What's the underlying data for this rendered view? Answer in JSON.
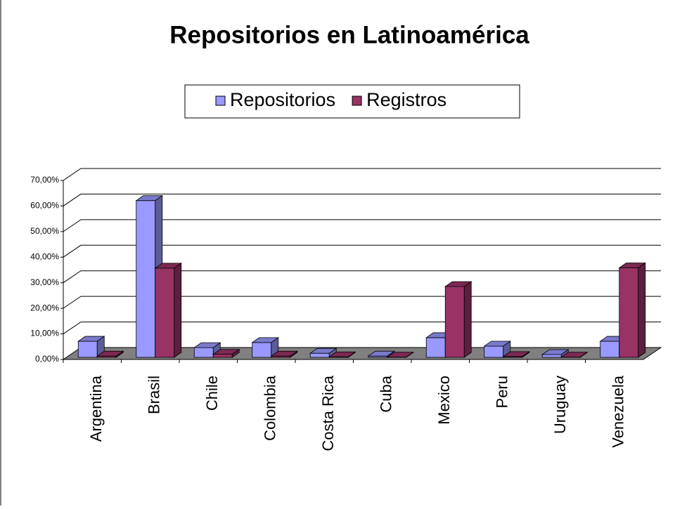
{
  "chart_data": {
    "type": "bar3d",
    "title": "Repositorios en Latinoamérica",
    "categories": [
      "Argentina",
      "Brasil",
      "Chile",
      "Colombia",
      "Costa Rica",
      "Cuba",
      "Mexico",
      "Peru",
      "Uruguay",
      "Venezuela"
    ],
    "series": [
      {
        "name": "Repositorios",
        "color": "#9999ff",
        "values": [
          6.3,
          61.3,
          3.8,
          5.8,
          1.6,
          0.5,
          7.7,
          4.4,
          1.1,
          6.3
        ]
      },
      {
        "name": "Registros",
        "color": "#993366",
        "values": [
          0.5,
          34.9,
          1.2,
          0.5,
          0.2,
          0.1,
          27.7,
          0.3,
          0.1,
          35
        ]
      }
    ],
    "ylim": [
      0,
      70
    ],
    "yticks": [
      {
        "value": 0,
        "label": "0,00%"
      },
      {
        "value": 10,
        "label": "10,00%"
      },
      {
        "value": 20,
        "label": "20,00%"
      },
      {
        "value": 30,
        "label": "30,00%"
      },
      {
        "value": 40,
        "label": "40,00%"
      },
      {
        "value": 50,
        "label": "50,00%"
      },
      {
        "value": 60,
        "label": "60,00%"
      },
      {
        "value": 70,
        "label": "70,00%"
      }
    ],
    "grid": true,
    "legend": "top"
  }
}
